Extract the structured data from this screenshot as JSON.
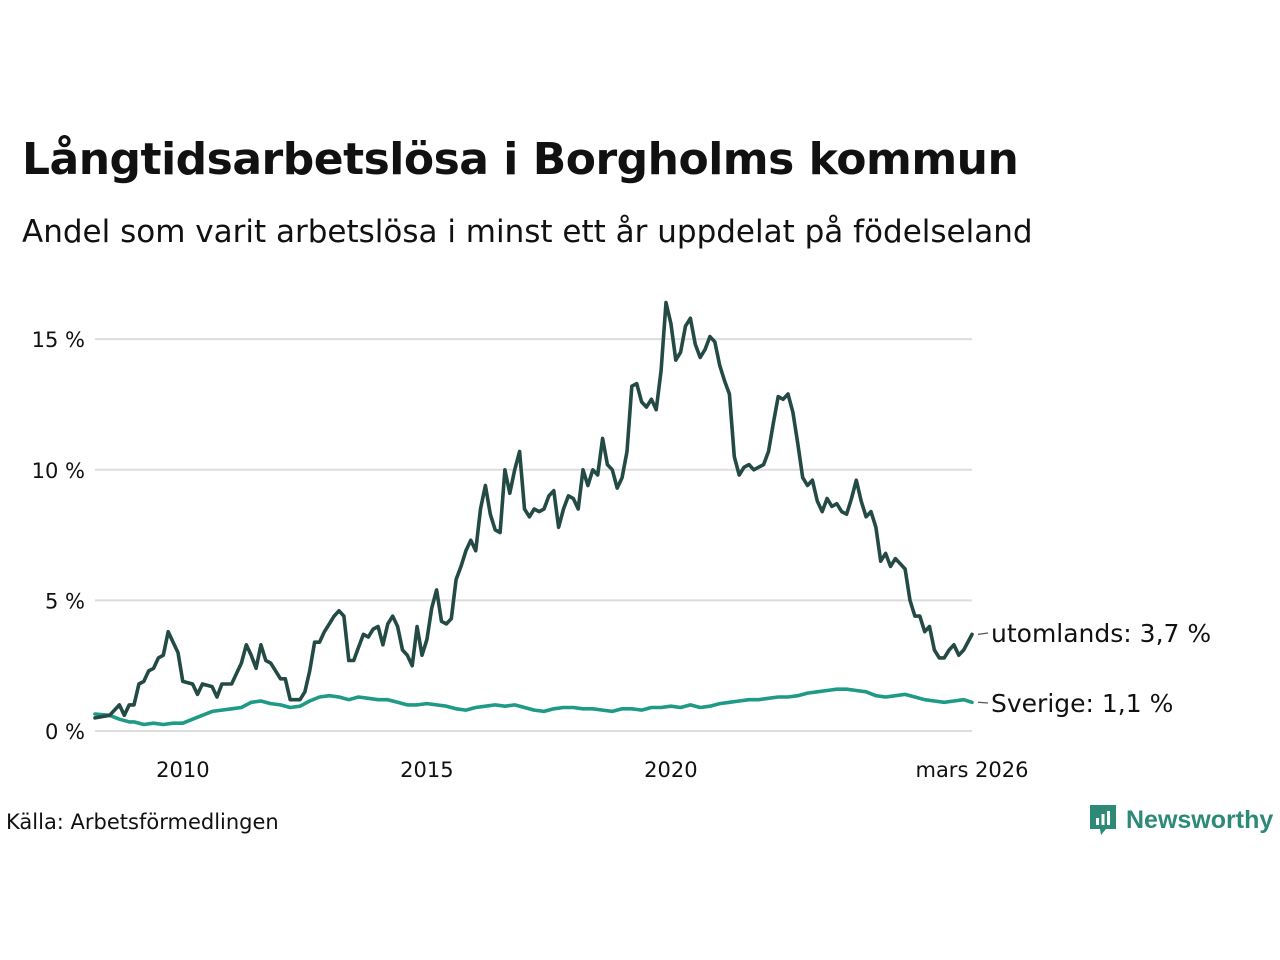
{
  "header": {
    "title": "Långtidsarbetslösa i Borgholms kommun",
    "subtitle": "Andel som varit arbetslösa i minst ett år uppdelat på födelseland"
  },
  "footer": {
    "source": "Källa: Arbetsförmedlingen",
    "brand": "Newsworthy",
    "brand_icon": "newsworthy-logo-icon"
  },
  "colors": {
    "utomlands": "#234a44",
    "sverige": "#1f9a86",
    "grid": "#dddddd",
    "brand": "#2c8a77"
  },
  "chart_data": {
    "type": "line",
    "title": "Långtidsarbetslösa i Borgholms kommun",
    "subtitle": "Andel som varit arbetslösa i minst ett år uppdelat på födelseland",
    "xlabel": "",
    "ylabel": "",
    "x_range": [
      2008.2,
      2026.17
    ],
    "ylim": [
      0,
      16.5
    ],
    "y_ticks": [
      0,
      5,
      10,
      15
    ],
    "y_tick_labels": [
      "0 %",
      "5 %",
      "10 %",
      "15 %"
    ],
    "x_ticks": [
      2010,
      2015,
      2020,
      2026.17
    ],
    "x_tick_labels": [
      "2010",
      "2015",
      "2020",
      "mars 2026"
    ],
    "grid": true,
    "series": [
      {
        "name": "utomlands",
        "end_label": "utomlands: 3,7 %",
        "points": [
          [
            2008.2,
            0.5
          ],
          [
            2008.5,
            0.6
          ],
          [
            2008.7,
            1.0
          ],
          [
            2008.8,
            0.6
          ],
          [
            2008.9,
            1.0
          ],
          [
            2009.0,
            1.0
          ],
          [
            2009.1,
            1.8
          ],
          [
            2009.2,
            1.9
          ],
          [
            2009.3,
            2.3
          ],
          [
            2009.4,
            2.4
          ],
          [
            2009.5,
            2.8
          ],
          [
            2009.6,
            2.9
          ],
          [
            2009.7,
            3.8
          ],
          [
            2009.8,
            3.4
          ],
          [
            2009.9,
            3.0
          ],
          [
            2010.0,
            1.9
          ],
          [
            2010.2,
            1.8
          ],
          [
            2010.3,
            1.4
          ],
          [
            2010.4,
            1.8
          ],
          [
            2010.6,
            1.7
          ],
          [
            2010.7,
            1.3
          ],
          [
            2010.8,
            1.8
          ],
          [
            2011.0,
            1.8
          ],
          [
            2011.1,
            2.2
          ],
          [
            2011.2,
            2.6
          ],
          [
            2011.3,
            3.3
          ],
          [
            2011.4,
            2.9
          ],
          [
            2011.5,
            2.4
          ],
          [
            2011.6,
            3.3
          ],
          [
            2011.7,
            2.7
          ],
          [
            2011.8,
            2.6
          ],
          [
            2012.0,
            2.0
          ],
          [
            2012.1,
            2.0
          ],
          [
            2012.2,
            1.2
          ],
          [
            2012.4,
            1.2
          ],
          [
            2012.5,
            1.5
          ],
          [
            2012.6,
            2.3
          ],
          [
            2012.7,
            3.4
          ],
          [
            2012.8,
            3.4
          ],
          [
            2012.9,
            3.8
          ],
          [
            2013.0,
            4.1
          ],
          [
            2013.1,
            4.4
          ],
          [
            2013.2,
            4.6
          ],
          [
            2013.3,
            4.4
          ],
          [
            2013.4,
            2.7
          ],
          [
            2013.5,
            2.7
          ],
          [
            2013.6,
            3.2
          ],
          [
            2013.7,
            3.7
          ],
          [
            2013.8,
            3.6
          ],
          [
            2013.9,
            3.9
          ],
          [
            2014.0,
            4.0
          ],
          [
            2014.1,
            3.3
          ],
          [
            2014.2,
            4.1
          ],
          [
            2014.3,
            4.4
          ],
          [
            2014.4,
            4.0
          ],
          [
            2014.5,
            3.1
          ],
          [
            2014.6,
            2.9
          ],
          [
            2014.7,
            2.5
          ],
          [
            2014.8,
            4.0
          ],
          [
            2014.9,
            2.9
          ],
          [
            2015.0,
            3.5
          ],
          [
            2015.1,
            4.7
          ],
          [
            2015.2,
            5.4
          ],
          [
            2015.3,
            4.2
          ],
          [
            2015.4,
            4.1
          ],
          [
            2015.5,
            4.3
          ],
          [
            2015.6,
            5.8
          ],
          [
            2015.7,
            6.3
          ],
          [
            2015.8,
            6.9
          ],
          [
            2015.9,
            7.3
          ],
          [
            2016.0,
            6.9
          ],
          [
            2016.1,
            8.5
          ],
          [
            2016.2,
            9.4
          ],
          [
            2016.3,
            8.3
          ],
          [
            2016.4,
            7.7
          ],
          [
            2016.5,
            7.6
          ],
          [
            2016.6,
            10.0
          ],
          [
            2016.7,
            9.1
          ],
          [
            2016.8,
            10.0
          ],
          [
            2016.9,
            10.7
          ],
          [
            2017.0,
            8.5
          ],
          [
            2017.1,
            8.2
          ],
          [
            2017.2,
            8.5
          ],
          [
            2017.3,
            8.4
          ],
          [
            2017.4,
            8.5
          ],
          [
            2017.5,
            9.0
          ],
          [
            2017.6,
            9.2
          ],
          [
            2017.7,
            7.8
          ],
          [
            2017.8,
            8.5
          ],
          [
            2017.9,
            9.0
          ],
          [
            2018.0,
            8.9
          ],
          [
            2018.1,
            8.5
          ],
          [
            2018.2,
            10.0
          ],
          [
            2018.3,
            9.4
          ],
          [
            2018.4,
            10.0
          ],
          [
            2018.5,
            9.8
          ],
          [
            2018.6,
            11.2
          ],
          [
            2018.7,
            10.2
          ],
          [
            2018.8,
            10.0
          ],
          [
            2018.9,
            9.3
          ],
          [
            2019.0,
            9.7
          ],
          [
            2019.1,
            10.7
          ],
          [
            2019.2,
            13.2
          ],
          [
            2019.3,
            13.3
          ],
          [
            2019.4,
            12.6
          ],
          [
            2019.5,
            12.4
          ],
          [
            2019.6,
            12.7
          ],
          [
            2019.7,
            12.3
          ],
          [
            2019.8,
            13.8
          ],
          [
            2019.9,
            16.4
          ],
          [
            2020.0,
            15.6
          ],
          [
            2020.1,
            14.2
          ],
          [
            2020.2,
            14.5
          ],
          [
            2020.3,
            15.5
          ],
          [
            2020.4,
            15.8
          ],
          [
            2020.5,
            14.8
          ],
          [
            2020.6,
            14.3
          ],
          [
            2020.7,
            14.6
          ],
          [
            2020.8,
            15.1
          ],
          [
            2020.9,
            14.9
          ],
          [
            2021.0,
            14.0
          ],
          [
            2021.1,
            13.4
          ],
          [
            2021.2,
            12.9
          ],
          [
            2021.3,
            10.5
          ],
          [
            2021.4,
            9.8
          ],
          [
            2021.5,
            10.1
          ],
          [
            2021.6,
            10.2
          ],
          [
            2021.7,
            10.0
          ],
          [
            2021.8,
            10.1
          ],
          [
            2021.9,
            10.2
          ],
          [
            2022.0,
            10.7
          ],
          [
            2022.1,
            11.8
          ],
          [
            2022.2,
            12.8
          ],
          [
            2022.3,
            12.7
          ],
          [
            2022.4,
            12.9
          ],
          [
            2022.5,
            12.2
          ],
          [
            2022.6,
            11.0
          ],
          [
            2022.7,
            9.7
          ],
          [
            2022.8,
            9.4
          ],
          [
            2022.9,
            9.6
          ],
          [
            2023.0,
            8.8
          ],
          [
            2023.1,
            8.4
          ],
          [
            2023.2,
            8.9
          ],
          [
            2023.3,
            8.6
          ],
          [
            2023.4,
            8.7
          ],
          [
            2023.5,
            8.4
          ],
          [
            2023.6,
            8.3
          ],
          [
            2023.7,
            8.9
          ],
          [
            2023.8,
            9.6
          ],
          [
            2023.9,
            8.8
          ],
          [
            2024.0,
            8.2
          ],
          [
            2024.1,
            8.4
          ],
          [
            2024.2,
            7.8
          ],
          [
            2024.3,
            6.5
          ],
          [
            2024.4,
            6.8
          ],
          [
            2024.5,
            6.3
          ],
          [
            2024.6,
            6.6
          ],
          [
            2024.7,
            6.4
          ],
          [
            2024.8,
            6.2
          ],
          [
            2024.9,
            5.0
          ],
          [
            2025.0,
            4.4
          ],
          [
            2025.1,
            4.4
          ],
          [
            2025.2,
            3.8
          ],
          [
            2025.3,
            4.0
          ],
          [
            2025.4,
            3.1
          ],
          [
            2025.5,
            2.8
          ],
          [
            2025.6,
            2.8
          ],
          [
            2025.7,
            3.1
          ],
          [
            2025.8,
            3.3
          ],
          [
            2025.9,
            2.9
          ],
          [
            2026.0,
            3.1
          ],
          [
            2026.17,
            3.7
          ]
        ]
      },
      {
        "name": "Sverige",
        "end_label": "Sverige: 1,1 %",
        "points": [
          [
            2008.2,
            0.65
          ],
          [
            2008.5,
            0.6
          ],
          [
            2008.7,
            0.45
          ],
          [
            2008.9,
            0.35
          ],
          [
            2009.0,
            0.35
          ],
          [
            2009.2,
            0.25
          ],
          [
            2009.4,
            0.3
          ],
          [
            2009.6,
            0.25
          ],
          [
            2009.8,
            0.3
          ],
          [
            2010.0,
            0.3
          ],
          [
            2010.2,
            0.45
          ],
          [
            2010.4,
            0.6
          ],
          [
            2010.6,
            0.75
          ],
          [
            2010.8,
            0.8
          ],
          [
            2011.0,
            0.85
          ],
          [
            2011.2,
            0.9
          ],
          [
            2011.4,
            1.1
          ],
          [
            2011.6,
            1.15
          ],
          [
            2011.8,
            1.05
          ],
          [
            2012.0,
            1.0
          ],
          [
            2012.2,
            0.9
          ],
          [
            2012.4,
            0.95
          ],
          [
            2012.6,
            1.15
          ],
          [
            2012.8,
            1.3
          ],
          [
            2013.0,
            1.35
          ],
          [
            2013.2,
            1.3
          ],
          [
            2013.4,
            1.2
          ],
          [
            2013.6,
            1.3
          ],
          [
            2013.8,
            1.25
          ],
          [
            2014.0,
            1.2
          ],
          [
            2014.2,
            1.2
          ],
          [
            2014.4,
            1.1
          ],
          [
            2014.6,
            1.0
          ],
          [
            2014.8,
            1.0
          ],
          [
            2015.0,
            1.05
          ],
          [
            2015.2,
            1.0
          ],
          [
            2015.4,
            0.95
          ],
          [
            2015.6,
            0.85
          ],
          [
            2015.8,
            0.8
          ],
          [
            2016.0,
            0.9
          ],
          [
            2016.2,
            0.95
          ],
          [
            2016.4,
            1.0
          ],
          [
            2016.6,
            0.95
          ],
          [
            2016.8,
            1.0
          ],
          [
            2017.0,
            0.9
          ],
          [
            2017.2,
            0.8
          ],
          [
            2017.4,
            0.75
          ],
          [
            2017.6,
            0.85
          ],
          [
            2017.8,
            0.9
          ],
          [
            2018.0,
            0.9
          ],
          [
            2018.2,
            0.85
          ],
          [
            2018.4,
            0.85
          ],
          [
            2018.6,
            0.8
          ],
          [
            2018.8,
            0.75
          ],
          [
            2019.0,
            0.85
          ],
          [
            2019.2,
            0.85
          ],
          [
            2019.4,
            0.8
          ],
          [
            2019.6,
            0.9
          ],
          [
            2019.8,
            0.9
          ],
          [
            2020.0,
            0.95
          ],
          [
            2020.2,
            0.9
          ],
          [
            2020.4,
            1.0
          ],
          [
            2020.6,
            0.9
          ],
          [
            2020.8,
            0.95
          ],
          [
            2021.0,
            1.05
          ],
          [
            2021.2,
            1.1
          ],
          [
            2021.4,
            1.15
          ],
          [
            2021.6,
            1.2
          ],
          [
            2021.8,
            1.2
          ],
          [
            2022.0,
            1.25
          ],
          [
            2022.2,
            1.3
          ],
          [
            2022.4,
            1.3
          ],
          [
            2022.6,
            1.35
          ],
          [
            2022.8,
            1.45
          ],
          [
            2023.0,
            1.5
          ],
          [
            2023.2,
            1.55
          ],
          [
            2023.4,
            1.6
          ],
          [
            2023.6,
            1.6
          ],
          [
            2023.8,
            1.55
          ],
          [
            2024.0,
            1.5
          ],
          [
            2024.2,
            1.35
          ],
          [
            2024.4,
            1.3
          ],
          [
            2024.6,
            1.35
          ],
          [
            2024.8,
            1.4
          ],
          [
            2025.0,
            1.3
          ],
          [
            2025.2,
            1.2
          ],
          [
            2025.4,
            1.15
          ],
          [
            2025.6,
            1.1
          ],
          [
            2025.8,
            1.15
          ],
          [
            2026.0,
            1.2
          ],
          [
            2026.17,
            1.1
          ]
        ]
      }
    ]
  }
}
